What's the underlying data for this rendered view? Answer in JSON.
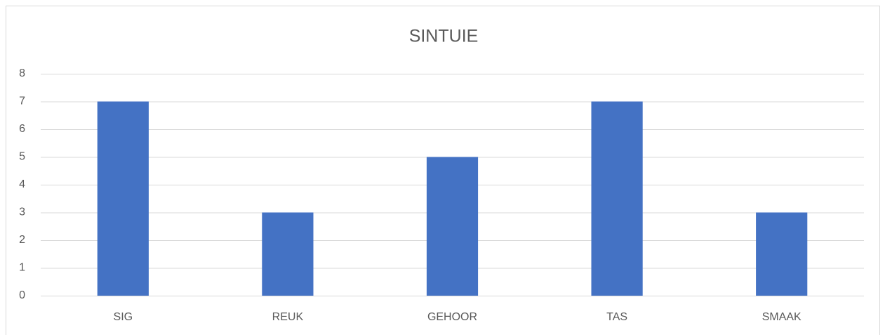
{
  "chart_data": {
    "type": "bar",
    "title": "SINTUIE",
    "categories": [
      "SIG",
      "REUK",
      "GEHOOR",
      "TAS",
      "SMAAK"
    ],
    "values": [
      7,
      3,
      5,
      7,
      3
    ],
    "color": "#4472c4",
    "ylim": [
      0,
      8
    ],
    "yticks": [
      0,
      1,
      2,
      3,
      4,
      5,
      6,
      7,
      8
    ],
    "grid": true
  }
}
